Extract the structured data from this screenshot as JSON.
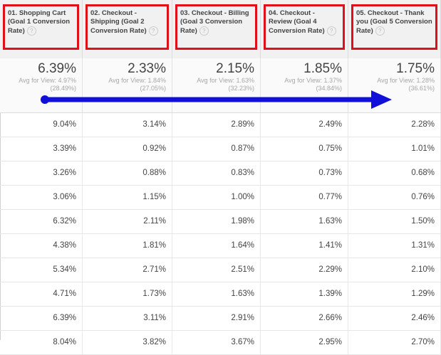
{
  "columns": [
    {
      "header": "01. Shopping Cart (Goal 1 Conversion Rate)",
      "value": "6.39%",
      "avg": "Avg for View: 4.97%",
      "pct": "(28.49%)"
    },
    {
      "header": "02. Checkout - Shipping (Goal 2 Conversion Rate)",
      "value": "2.33%",
      "avg": "Avg for View: 1.84%",
      "pct": "(27.05%)"
    },
    {
      "header": "03. Checkout - Billing (Goal 3 Conversion Rate)",
      "value": "2.15%",
      "avg": "Avg for View: 1.63%",
      "pct": "(32.23%)"
    },
    {
      "header": "04. Checkout - Review (Goal 4 Conversion Rate)",
      "value": "1.85%",
      "avg": "Avg for View: 1.37%",
      "pct": "(34.84%)"
    },
    {
      "header": "05. Checkout - Thank you (Goal 5 Conversion Rate)",
      "value": "1.75%",
      "avg": "Avg for View: 1.28%",
      "pct": "(36.61%)"
    }
  ],
  "help_icon": "?",
  "rows": [
    [
      "9.04%",
      "3.14%",
      "2.89%",
      "2.49%",
      "2.28%"
    ],
    [
      "3.39%",
      "0.92%",
      "0.87%",
      "0.75%",
      "1.01%"
    ],
    [
      "3.26%",
      "0.88%",
      "0.83%",
      "0.73%",
      "0.68%"
    ],
    [
      "3.06%",
      "1.15%",
      "1.00%",
      "0.77%",
      "0.76%"
    ],
    [
      "6.32%",
      "2.11%",
      "1.98%",
      "1.63%",
      "1.50%"
    ],
    [
      "4.38%",
      "1.81%",
      "1.64%",
      "1.41%",
      "1.31%"
    ],
    [
      "5.34%",
      "2.71%",
      "2.51%",
      "2.29%",
      "2.10%"
    ],
    [
      "4.71%",
      "1.73%",
      "1.63%",
      "1.39%",
      "1.29%"
    ],
    [
      "6.39%",
      "3.11%",
      "2.91%",
      "2.66%",
      "2.46%"
    ],
    [
      "8.04%",
      "3.82%",
      "3.67%",
      "2.95%",
      "2.70%"
    ]
  ],
  "colors": {
    "highlight_box": "#e0101a",
    "arrow": "#1010d8"
  }
}
